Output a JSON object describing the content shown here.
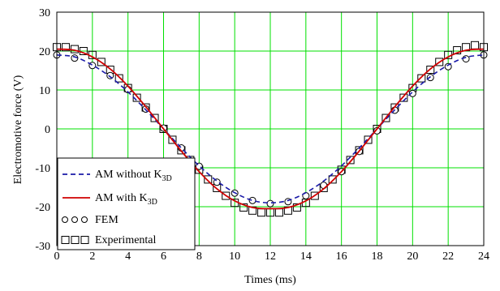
{
  "chart_data": {
    "type": "line",
    "title": "",
    "xlabel": "Times (ms)",
    "ylabel": "Electromotive force (V)",
    "xlim": [
      0,
      24
    ],
    "ylim": [
      -30,
      30
    ],
    "xticks": [
      0,
      2,
      4,
      6,
      8,
      10,
      12,
      14,
      16,
      18,
      20,
      22,
      24
    ],
    "yticks": [
      -30,
      -20,
      -10,
      0,
      10,
      20,
      30
    ],
    "grid": true,
    "grid_color": "#00e000",
    "legend_position": "bottom-left",
    "legend": [
      {
        "label_main": "AM without  K",
        "label_sub": "3D",
        "style": "dashed",
        "color": "#1a1aa8",
        "series": "am_without"
      },
      {
        "label_main": "AM with  K",
        "label_sub": "3D",
        "style": "solid",
        "color": "#d00000",
        "series": "am_with"
      },
      {
        "label_main": "FEM",
        "marker": "circle",
        "series": "fem"
      },
      {
        "label_main": "Experimental",
        "marker": "square",
        "series": "exp"
      }
    ],
    "series": [
      {
        "name": "AM without K3D",
        "key": "am_without",
        "style": "dashed",
        "color": "#1a1aa8",
        "x": [
          0,
          1,
          2,
          3,
          4,
          5,
          6,
          7,
          8,
          9,
          10,
          11,
          12,
          13,
          14,
          15,
          16,
          17,
          18,
          19,
          20,
          21,
          22,
          23,
          24
        ],
        "y": [
          19,
          18.5,
          16.4,
          13.4,
          9.5,
          4.9,
          0,
          -4.9,
          -9.5,
          -13.4,
          -16.4,
          -18.4,
          -19,
          -18.4,
          -16.4,
          -13.4,
          -9.5,
          -4.9,
          0,
          4.9,
          9.5,
          13.4,
          16.4,
          18.4,
          19
        ]
      },
      {
        "name": "AM with K3D",
        "key": "am_with",
        "style": "solid",
        "color": "#d00000",
        "x": [
          0,
          1,
          2,
          3,
          4,
          5,
          6,
          7,
          8,
          9,
          10,
          11,
          12,
          13,
          14,
          15,
          16,
          17,
          18,
          19,
          20,
          21,
          22,
          23,
          24
        ],
        "y": [
          20.5,
          20.2,
          18.5,
          15.4,
          11.0,
          5.7,
          0,
          -5.7,
          -11.0,
          -15.4,
          -18.5,
          -20.2,
          -20.5,
          -20.2,
          -18.5,
          -15.4,
          -11.0,
          -5.7,
          0,
          5.7,
          11.0,
          15.4,
          18.5,
          20.2,
          20.5
        ]
      },
      {
        "name": "FEM",
        "key": "fem",
        "marker": "circle",
        "x": [
          0,
          1,
          2,
          3,
          4,
          5,
          6,
          7,
          8,
          9,
          10,
          11,
          12,
          13,
          14,
          15,
          16,
          17,
          18,
          19,
          20,
          21,
          22,
          23,
          24
        ],
        "y": [
          19,
          18.2,
          16.3,
          13.7,
          10.1,
          5.1,
          0.2,
          -4.9,
          -9.6,
          -13.7,
          -16.5,
          -18.4,
          -19.2,
          -18.7,
          -17.2,
          -14.5,
          -11.0,
          -5.8,
          -0.5,
          4.8,
          9.1,
          13.2,
          16.0,
          18.0,
          19.0
        ]
      },
      {
        "name": "Experimental",
        "key": "exp",
        "marker": "square",
        "x": [
          0,
          0.5,
          1,
          1.5,
          2,
          2.5,
          3,
          3.5,
          4,
          4.5,
          5,
          5.5,
          6,
          6.5,
          7,
          7.5,
          8,
          8.5,
          9,
          9.5,
          10,
          10.5,
          11,
          11.5,
          12,
          12.5,
          13,
          13.5,
          14,
          14.5,
          15,
          15.5,
          16,
          16.5,
          17,
          17.5,
          18,
          18.5,
          19,
          19.5,
          20,
          20.5,
          21,
          21.5,
          22,
          22.5,
          23,
          23.5,
          24
        ],
        "y": [
          21,
          21,
          20.5,
          20,
          19,
          17.2,
          15.2,
          13,
          10.5,
          8,
          5.5,
          2.8,
          0,
          -2.8,
          -5.5,
          -8,
          -10.5,
          -13,
          -15.2,
          -17.2,
          -19,
          -20.2,
          -21,
          -21.5,
          -21.5,
          -21.5,
          -21,
          -20.2,
          -19,
          -17.2,
          -15.2,
          -13,
          -10.5,
          -8,
          -5.5,
          -2.8,
          0,
          2.8,
          5.5,
          8,
          10.5,
          13,
          15.2,
          17.2,
          19,
          20.2,
          21,
          21.5,
          21
        ]
      }
    ]
  }
}
